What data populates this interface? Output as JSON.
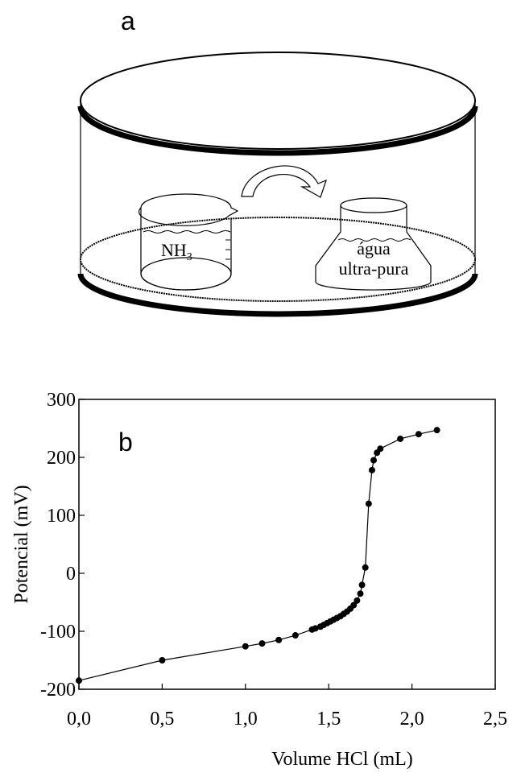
{
  "diagram": {
    "label": "a",
    "left_vessel": {
      "label": "NH",
      "subscript": "3"
    },
    "right_vessel": {
      "lines": [
        "água",
        "ultra-pura"
      ]
    }
  },
  "chart_data": {
    "type": "line",
    "annotation": "b",
    "x_label": "Volume HCl  (mL)",
    "y_label": "Potencial (mV)",
    "x": [
      0,
      0.5,
      1.0,
      1.1,
      1.2,
      1.3,
      1.4,
      1.42,
      1.45,
      1.47,
      1.49,
      1.51,
      1.53,
      1.55,
      1.57,
      1.59,
      1.61,
      1.63,
      1.65,
      1.67,
      1.69,
      1.7,
      1.72,
      1.74,
      1.76,
      1.77,
      1.79,
      1.81,
      1.93,
      2.04,
      2.15
    ],
    "values": [
      -185,
      -150,
      -126,
      -121,
      -115,
      -107,
      -97,
      -95,
      -92,
      -89,
      -86,
      -83,
      -80,
      -77,
      -74,
      -70,
      -66,
      -61,
      -55,
      -47,
      -35,
      -20,
      10,
      120,
      178,
      195,
      208,
      215,
      232,
      240,
      247
    ],
    "color": "#000000",
    "xlim": [
      0,
      2.5
    ],
    "xticks": [
      {
        "value": 0,
        "label": "0,0"
      },
      {
        "value": 0.5,
        "label": "0,5"
      },
      {
        "value": 1.0,
        "label": "1,0"
      },
      {
        "value": 1.5,
        "label": "1,5"
      },
      {
        "value": 2.0,
        "label": "2,0"
      },
      {
        "value": 2.5,
        "label": "2,5"
      }
    ],
    "ylim": [
      -200,
      300
    ],
    "yticks": [
      -200,
      -100,
      0,
      100,
      200,
      300
    ]
  }
}
